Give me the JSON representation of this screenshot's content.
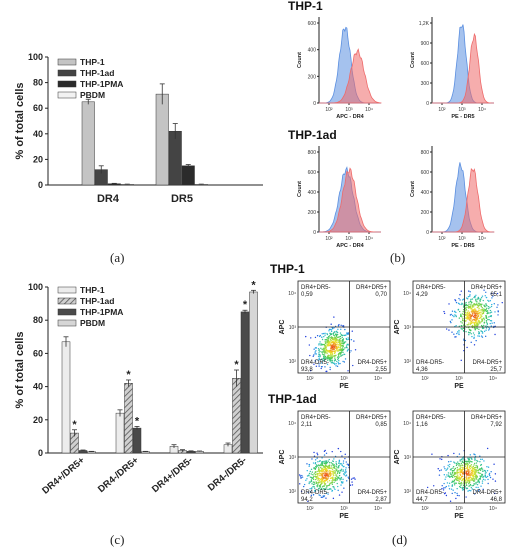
{
  "chart_data": [
    {
      "panel": "(a)",
      "type": "bar",
      "ylabel": "% of total cells",
      "ylim": [
        0,
        100
      ],
      "yticks": [
        0,
        20,
        40,
        60,
        80,
        100
      ],
      "categories": [
        "DR4",
        "DR5"
      ],
      "legend_position": "top-left",
      "series": [
        {
          "name": "THP-1",
          "values": [
            65,
            71
          ],
          "errors": [
            2,
            8
          ],
          "color": "#c4c4c4"
        },
        {
          "name": "THP-1ad",
          "values": [
            12,
            42
          ],
          "errors": [
            3,
            6
          ],
          "color": "#444444"
        },
        {
          "name": "THP-1PMA",
          "values": [
            1,
            15
          ],
          "errors": [
            0.3,
            1
          ],
          "color": "#2b2b2b"
        },
        {
          "name": "PBDM",
          "values": [
            0.5,
            0.5
          ],
          "errors": [
            0.2,
            0.2
          ],
          "color": "#f2f2f2"
        }
      ]
    },
    {
      "panel": "(c)",
      "type": "bar",
      "ylabel": "% of total cells",
      "ylim": [
        0,
        100
      ],
      "yticks": [
        0,
        20,
        40,
        60,
        80,
        100
      ],
      "categories": [
        "DR4+/DR5+",
        "DR4-/DR5+",
        "DR4+/DR5-",
        "DR4-/DR5-"
      ],
      "legend_position": "top-left",
      "series": [
        {
          "name": "THP-1",
          "values": [
            67,
            24,
            4,
            5
          ],
          "errors": [
            3,
            2,
            1,
            1
          ],
          "stars": [
            false,
            false,
            false,
            false
          ],
          "color": "#ececec"
        },
        {
          "name": "THP-1ad",
          "values": [
            12,
            42,
            1.5,
            45
          ],
          "errors": [
            2,
            2,
            0.5,
            5
          ],
          "stars": [
            true,
            true,
            false,
            true
          ],
          "color": "#8a8a8a",
          "pattern": "hatch"
        },
        {
          "name": "THP-1PMA",
          "values": [
            1.5,
            15,
            1,
            85
          ],
          "errors": [
            0.3,
            1,
            0.3,
            1
          ],
          "stars": [
            false,
            true,
            false,
            true
          ],
          "color": "#4a4a4a"
        },
        {
          "name": "PBDM",
          "values": [
            0.8,
            0.8,
            1,
            97
          ],
          "errors": [
            0.2,
            0.2,
            0.2,
            1
          ],
          "stars": [
            false,
            false,
            false,
            true
          ],
          "color": "#d6d6d6"
        }
      ]
    },
    {
      "panel": "(b)",
      "type": "area",
      "description_type": "histogram",
      "plots": [
        {
          "row_title": "THP-1",
          "xlabel": "APC - DR4",
          "ylabel": "Count",
          "yticks": [
            "0",
            "200",
            "400",
            "600"
          ],
          "xticks": [
            "10²",
            "10³",
            "10⁴"
          ]
        },
        {
          "row_title": "",
          "xlabel": "PE - DR5",
          "ylabel": "Count",
          "yticks": [
            "0",
            "300",
            "600",
            "900",
            "1,2K"
          ],
          "xticks": [
            "10²",
            "10³",
            "10⁴"
          ]
        },
        {
          "row_title": "THP-1ad",
          "xlabel": "APC - DR4",
          "ylabel": "Count",
          "yticks": [
            "0",
            "200",
            "400",
            "600",
            "800"
          ],
          "xticks": [
            "10²",
            "10³",
            "10⁴"
          ]
        },
        {
          "row_title": "",
          "xlabel": "PE - DR5",
          "ylabel": "Count",
          "yticks": [
            "0",
            "200",
            "400",
            "600",
            "800"
          ],
          "xticks": [
            "10²",
            "10³",
            "10⁴"
          ]
        }
      ],
      "colors": {
        "blue": "#5b8fe0",
        "red": "#ee6a6a"
      }
    },
    {
      "panel": "(d)",
      "type": "scatter",
      "description_type": "flow cytometry dot plots",
      "plots": [
        {
          "row_title": "THP-1",
          "quadrants": {
            "ul_label": "DR4+DR5-",
            "ul": "0,59",
            "ur_label": "DR4+DR5+",
            "ur": "0,70",
            "ll_label": "DR4-DR5-",
            "ll": "93,8",
            "lr_label": "DR4-DR5+",
            "lr": "2,55"
          },
          "xlabel": "PE",
          "ylabel": "APC"
        },
        {
          "row_title": "",
          "quadrants": {
            "ul_label": "DR4+DR5-",
            "ul": "4,29",
            "ur_label": "DR4+DR5+",
            "ur": "65,1",
            "ll_label": "DR4-DR5-",
            "ll": "4,36",
            "lr_label": "DR4-DR5+",
            "lr": "25,7"
          },
          "xlabel": "PE",
          "ylabel": "APC"
        },
        {
          "row_title": "THP-1ad",
          "quadrants": {
            "ul_label": "DR4+DR5-",
            "ul": "2,11",
            "ur_label": "DR4+DR5+",
            "ur": "0,85",
            "ll_label": "DR4-DR5-",
            "ll": "94,2",
            "lr_label": "DR4-DR5+",
            "lr": "2,87"
          },
          "xlabel": "PE",
          "ylabel": "APC"
        },
        {
          "row_title": "",
          "quadrants": {
            "ul_label": "DR4+DR5-",
            "ul": "1,16",
            "ur_label": "DR4+DR5+",
            "ur": "7,92",
            "ll_label": "DR4-DR5-",
            "ll": "44,7",
            "lr_label": "DR4-DR5+",
            "lr": "46,8"
          },
          "xlabel": "PE",
          "ylabel": "APC"
        }
      ],
      "xticks": [
        "10²",
        "10³",
        "10⁴"
      ],
      "yticks": [
        "10²",
        "10³",
        "10⁴"
      ]
    }
  ],
  "captions": {
    "a": "(a)",
    "b": "(b)",
    "c": "(c)",
    "d": "(d)"
  }
}
